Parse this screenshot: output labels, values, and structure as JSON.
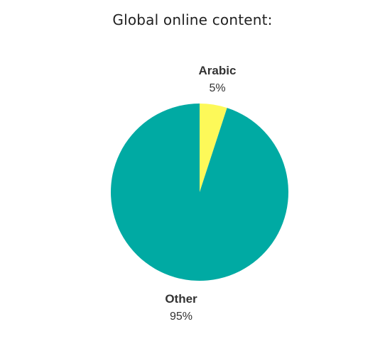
{
  "chart_data": {
    "type": "pie",
    "title": "Global online content:",
    "slices": [
      {
        "label": "Arabic",
        "value": 5,
        "value_label": "5%",
        "color": "#FDF959"
      },
      {
        "label": "Other",
        "value": 95,
        "value_label": "95%",
        "color": "#00AAA3"
      }
    ],
    "legend": "none",
    "labels": "outside"
  }
}
